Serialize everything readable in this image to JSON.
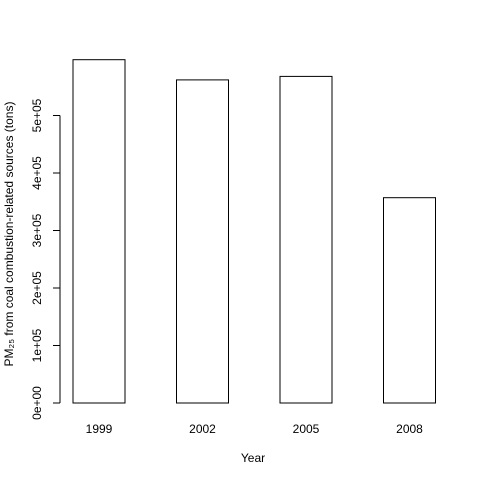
{
  "chart_data": {
    "type": "bar",
    "title": "",
    "xlabel": "Year",
    "ylabel": "PM₂₅ from coal combustion-related sources (tons)",
    "categories": [
      "1999",
      "2002",
      "2005",
      "2008"
    ],
    "values": [
      597000,
      562000,
      568000,
      357000
    ],
    "ylim": [
      0,
      600000
    ],
    "yticks": [
      0,
      100000,
      200000,
      300000,
      400000,
      500000
    ],
    "ytick_labels": [
      "0e+00",
      "1e+05",
      "2e+05",
      "3e+05",
      "4e+05",
      "5e+05"
    ],
    "grid": false,
    "legend": "none",
    "bar_fill": "#ffffff",
    "bar_stroke": "#000000"
  }
}
